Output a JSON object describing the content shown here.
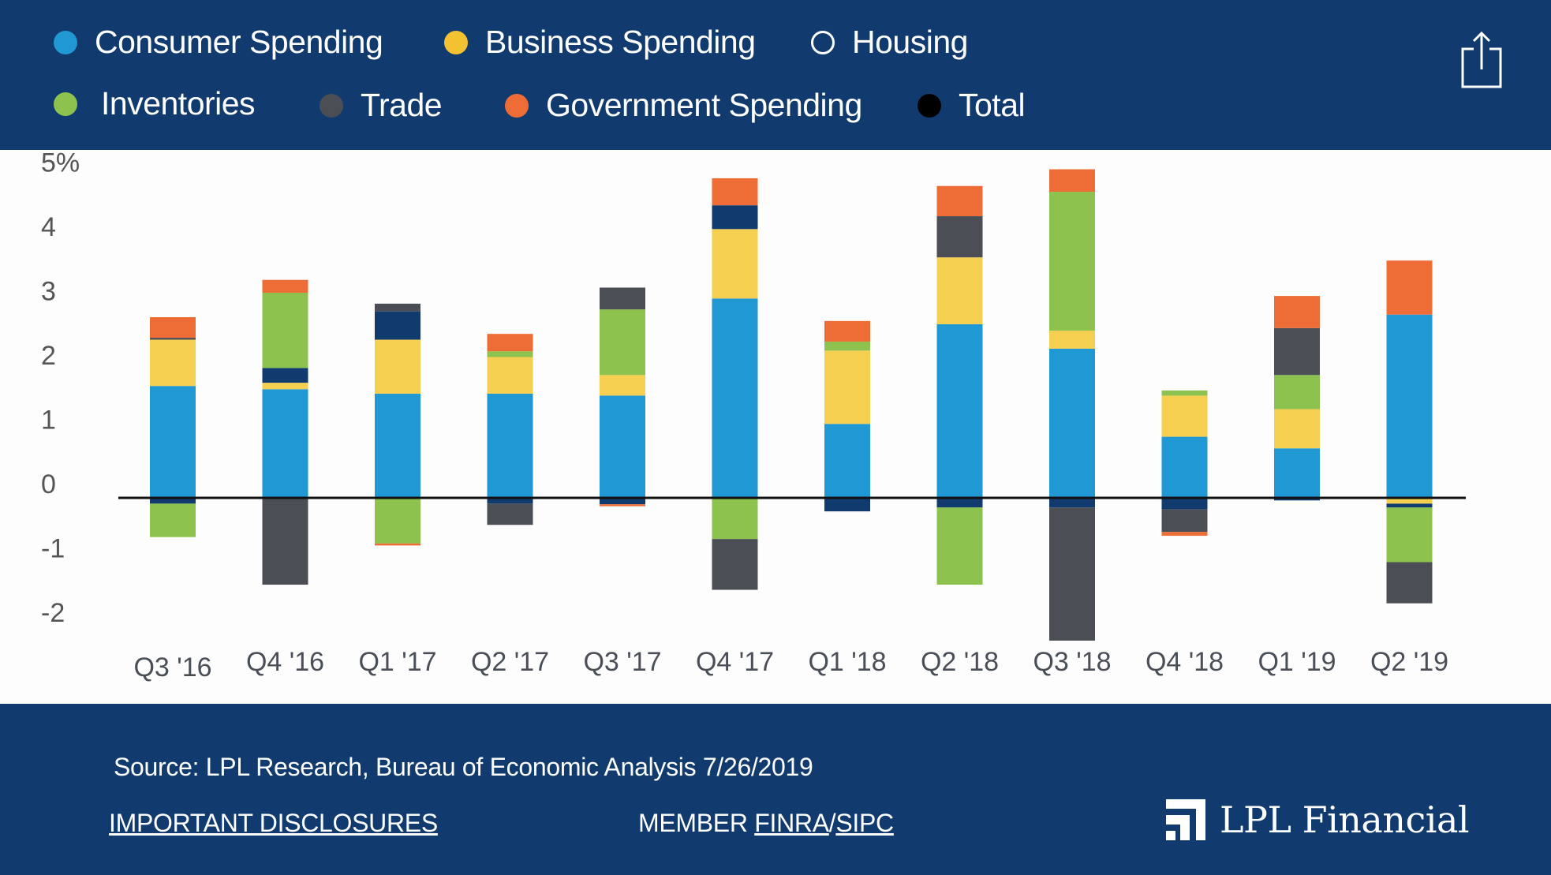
{
  "legend": [
    {
      "label": "Consumer Spending",
      "color": "#2098d4",
      "hollow": false
    },
    {
      "label": "Business Spending",
      "color": "#f2c230",
      "hollow": false
    },
    {
      "label": "Housing",
      "color": "#113b6e",
      "hollow": true
    },
    {
      "label": "Inventories",
      "color": "#8dc24e",
      "hollow": false
    },
    {
      "label": "Trade",
      "color": "#4b4f55",
      "hollow": false
    },
    {
      "label": "Government Spending",
      "color": "#ee6c35",
      "hollow": false
    },
    {
      "label": "Total",
      "color": "#000000",
      "hollow": false
    }
  ],
  "header": {
    "share_icon": "share-icon"
  },
  "chart_data": {
    "type": "bar",
    "stacked": true,
    "categories": [
      "Q3 '16",
      "Q4 '16",
      "Q1 '17",
      "Q2 '17",
      "Q3 '17",
      "Q4 '17",
      "Q1 '18",
      "Q2 '18",
      "Q3 '18",
      "Q4 '18",
      "Q1 '19",
      "Q2 '19"
    ],
    "ylim": [
      -2.3,
      5.3
    ],
    "yticks": [
      {
        "v": 5,
        "label": "5%"
      },
      {
        "v": 4,
        "label": "4"
      },
      {
        "v": 3,
        "label": "3"
      },
      {
        "v": 2,
        "label": "2"
      },
      {
        "v": 1,
        "label": "1"
      },
      {
        "v": 0,
        "label": "0"
      },
      {
        "v": -1,
        "label": "-1"
      },
      {
        "v": -2,
        "label": "-2"
      }
    ],
    "grid": false,
    "legend_placement": "top",
    "series": [
      {
        "name": "Consumer Spending",
        "color": "#2098d4",
        "values": [
          1.74,
          1.69,
          1.62,
          1.62,
          1.59,
          3.1,
          1.15,
          2.7,
          2.32,
          0.95,
          0.77,
          2.85
        ]
      },
      {
        "name": "Business Spending",
        "color": "#f4cf50",
        "values": [
          0.72,
          0.1,
          0.84,
          0.57,
          0.32,
          1.08,
          1.14,
          1.04,
          0.28,
          0.64,
          0.61,
          -0.09
        ]
      },
      {
        "name": "Housing",
        "color": "#113b6e",
        "values": [
          -0.09,
          0.23,
          0.44,
          -0.09,
          -0.1,
          0.37,
          -0.21,
          -0.15,
          -0.15,
          -0.18,
          -0.04,
          -0.06
        ]
      },
      {
        "name": "Inventories",
        "color": "#8dc24e",
        "values": [
          -0.52,
          1.17,
          -0.71,
          0.09,
          1.02,
          -0.64,
          0.14,
          -1.2,
          2.16,
          0.08,
          0.53,
          -0.85
        ]
      },
      {
        "name": "Trade",
        "color": "#4b4f55",
        "values": [
          0.03,
          -1.35,
          0.12,
          -0.33,
          0.34,
          -0.79,
          0.0,
          0.64,
          -2.07,
          -0.35,
          0.73,
          -0.64
        ]
      },
      {
        "name": "Government Spending",
        "color": "#ee6c35",
        "values": [
          0.32,
          0.2,
          -0.03,
          0.27,
          -0.03,
          0.42,
          0.32,
          0.47,
          0.35,
          -0.06,
          0.5,
          0.84
        ]
      }
    ]
  },
  "footer": {
    "source": "Source: LPL Research, Bureau of Economic Analysis  7/26/2019",
    "disclosures": "IMPORTANT DISCLOSURES",
    "member": "MEMBER ",
    "finra": "FINRA",
    "slash": "/",
    "sipc": "SIPC",
    "logo_text": "LPL Financial"
  }
}
